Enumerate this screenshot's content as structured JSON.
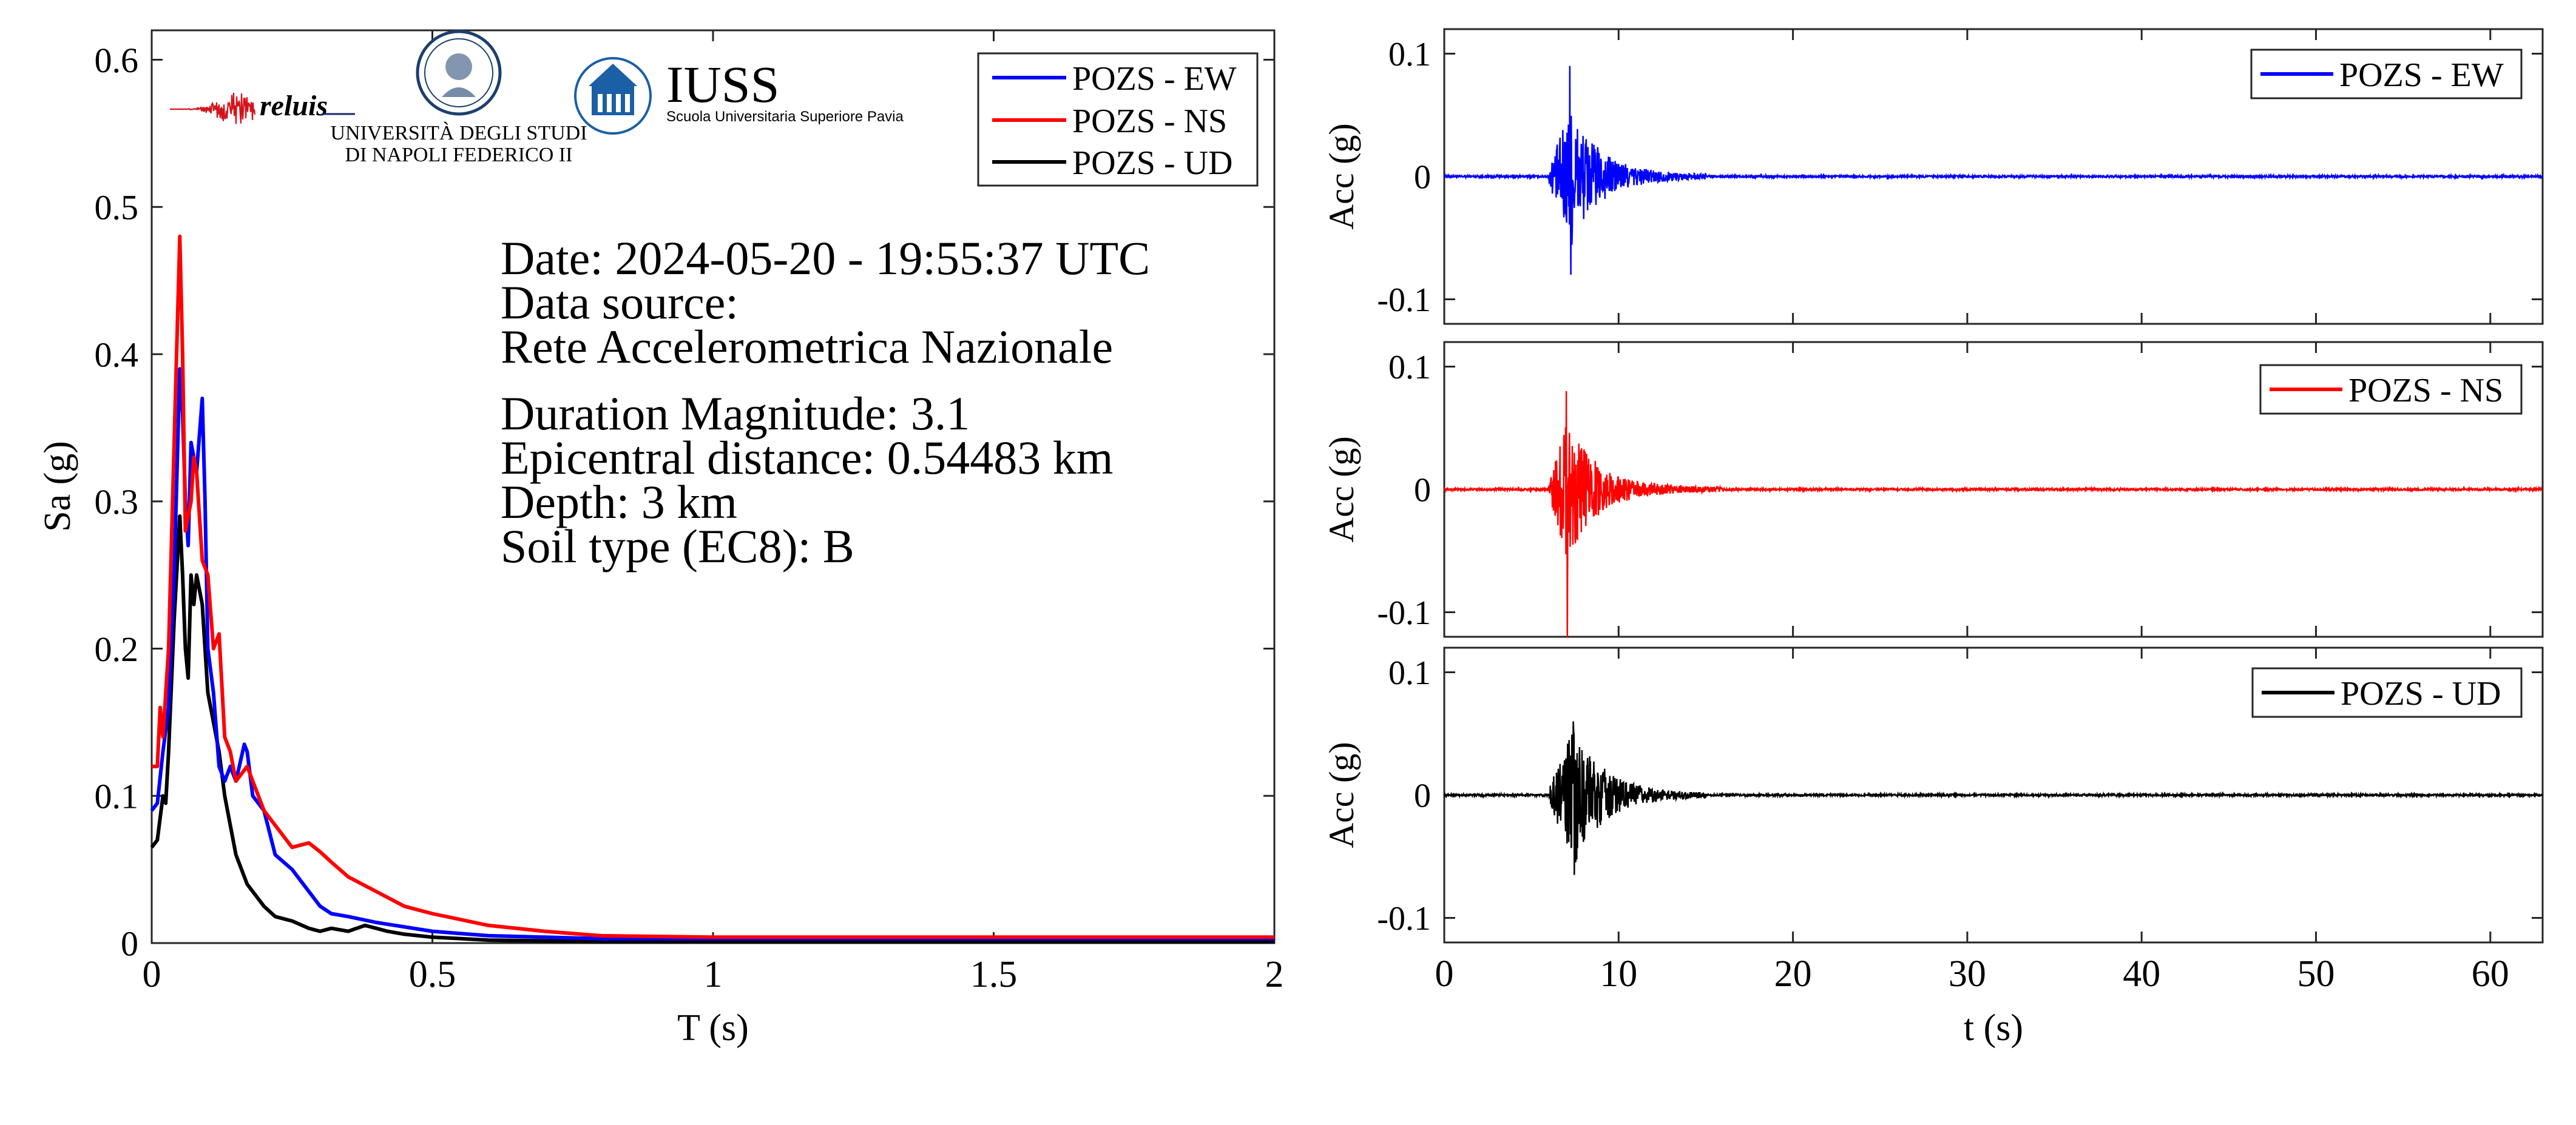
{
  "colors": {
    "ew": "#0000ff",
    "ns": "#ff0000",
    "ud": "#000000",
    "iuss": "#1b5fa6"
  },
  "logos": {
    "reluis": "reluis",
    "unina_line1": "UNIVERSITÀ DEGLI STUDI",
    "unina_line2": "DI NAPOLI FEDERICO II",
    "iuss_name": "IUSS",
    "iuss_sub": "Scuola Universitaria Superiore Pavia"
  },
  "info": {
    "date": "Date: 2024-05-20 - 19:55:37 UTC",
    "source_label": "Data source:",
    "source_value": "Rete Accelerometrica Nazionale",
    "magnitude": "Duration Magnitude: 3.1",
    "distance": "Epicentral distance: 0.54483 km",
    "depth": "Depth: 3 km",
    "soil": "Soil type (EC8): B"
  },
  "chart_data": [
    {
      "type": "line",
      "xlabel": "T (s)",
      "ylabel": "Sa (g)",
      "xlim": [
        0,
        2
      ],
      "ylim": [
        0,
        0.62
      ],
      "xticks": [
        0,
        0.5,
        1,
        1.5,
        2
      ],
      "xtick_labels": [
        "0",
        "0.5",
        "1",
        "1.5",
        "2"
      ],
      "yticks": [
        0,
        0.1,
        0.2,
        0.3,
        0.4,
        0.5,
        0.6
      ],
      "ytick_labels": [
        "0",
        "0.1",
        "0.2",
        "0.3",
        "0.4",
        "0.5",
        "0.6"
      ],
      "grid": false,
      "legend": "top-right",
      "series": [
        {
          "name": "POZS - EW",
          "color": "#0000ff",
          "x": [
            0,
            0.01,
            0.02,
            0.03,
            0.04,
            0.05,
            0.055,
            0.06,
            0.065,
            0.07,
            0.08,
            0.09,
            0.095,
            0.1,
            0.11,
            0.12,
            0.13,
            0.14,
            0.15,
            0.165,
            0.17,
            0.18,
            0.2,
            0.22,
            0.25,
            0.28,
            0.3,
            0.32,
            0.35,
            0.4,
            0.45,
            0.5,
            0.6,
            0.7,
            0.8,
            1.0,
            1.2,
            1.5,
            2.0
          ],
          "y": [
            0.09,
            0.095,
            0.13,
            0.16,
            0.25,
            0.39,
            0.36,
            0.3,
            0.27,
            0.34,
            0.32,
            0.37,
            0.3,
            0.2,
            0.17,
            0.12,
            0.11,
            0.12,
            0.11,
            0.135,
            0.13,
            0.1,
            0.09,
            0.06,
            0.05,
            0.035,
            0.025,
            0.02,
            0.018,
            0.014,
            0.011,
            0.008,
            0.005,
            0.004,
            0.003,
            0.003,
            0.003,
            0.003,
            0.003
          ]
        },
        {
          "name": "POZS - NS",
          "color": "#ff0000",
          "x": [
            0,
            0.01,
            0.015,
            0.02,
            0.03,
            0.04,
            0.05,
            0.055,
            0.06,
            0.07,
            0.075,
            0.08,
            0.09,
            0.1,
            0.11,
            0.12,
            0.13,
            0.14,
            0.15,
            0.17,
            0.2,
            0.22,
            0.25,
            0.28,
            0.3,
            0.32,
            0.35,
            0.4,
            0.45,
            0.5,
            0.6,
            0.7,
            0.8,
            1.0,
            1.2,
            1.5,
            2.0
          ],
          "y": [
            0.12,
            0.12,
            0.16,
            0.14,
            0.2,
            0.34,
            0.48,
            0.4,
            0.28,
            0.3,
            0.33,
            0.32,
            0.26,
            0.25,
            0.2,
            0.21,
            0.14,
            0.13,
            0.11,
            0.12,
            0.09,
            0.08,
            0.065,
            0.068,
            0.062,
            0.055,
            0.045,
            0.035,
            0.025,
            0.02,
            0.012,
            0.008,
            0.005,
            0.004,
            0.004,
            0.004,
            0.004
          ]
        },
        {
          "name": "POZS - UD",
          "color": "#000000",
          "x": [
            0,
            0.01,
            0.02,
            0.025,
            0.03,
            0.04,
            0.05,
            0.055,
            0.06,
            0.065,
            0.07,
            0.075,
            0.08,
            0.09,
            0.1,
            0.11,
            0.12,
            0.13,
            0.14,
            0.15,
            0.17,
            0.2,
            0.22,
            0.25,
            0.28,
            0.3,
            0.32,
            0.35,
            0.38,
            0.4,
            0.42,
            0.45,
            0.5,
            0.6,
            0.8,
            1.0,
            1.5,
            2.0
          ],
          "y": [
            0.065,
            0.07,
            0.1,
            0.095,
            0.13,
            0.22,
            0.29,
            0.25,
            0.2,
            0.18,
            0.25,
            0.23,
            0.25,
            0.23,
            0.17,
            0.15,
            0.13,
            0.1,
            0.08,
            0.06,
            0.04,
            0.025,
            0.018,
            0.015,
            0.01,
            0.008,
            0.01,
            0.008,
            0.012,
            0.01,
            0.008,
            0.006,
            0.004,
            0.002,
            0.001,
            0.001,
            0.001,
            0.001
          ]
        }
      ]
    },
    {
      "type": "line",
      "xlabel": "",
      "ylabel": "Acc (g)",
      "xlim": [
        0,
        63
      ],
      "ylim": [
        -0.12,
        0.12
      ],
      "yticks": [
        -0.1,
        0,
        0.1
      ],
      "ytick_labels": [
        "-0.1",
        "0",
        "0.1"
      ],
      "legend": "top-right",
      "series": [
        {
          "name": "POZS - EW",
          "color": "#0000ff",
          "envelope": {
            "onset": 6.0,
            "peak_time": 7.2,
            "peak_pos": 0.09,
            "peak_neg": -0.08,
            "decay_end": 15
          }
        }
      ]
    },
    {
      "type": "line",
      "xlabel": "",
      "ylabel": "Acc (g)",
      "xlim": [
        0,
        63
      ],
      "ylim": [
        -0.12,
        0.12
      ],
      "yticks": [
        -0.1,
        0,
        0.1
      ],
      "ytick_labels": [
        "-0.1",
        "0",
        "0.1"
      ],
      "legend": "top-right",
      "series": [
        {
          "name": "POZS - NS",
          "color": "#ff0000",
          "envelope": {
            "onset": 6.0,
            "peak_time": 7.0,
            "peak_pos": 0.08,
            "peak_neg": -0.12,
            "decay_end": 16
          }
        }
      ]
    },
    {
      "type": "line",
      "xlabel": "t (s)",
      "ylabel": "Acc (g)",
      "xlim": [
        0,
        63
      ],
      "ylim": [
        -0.12,
        0.12
      ],
      "xticks": [
        0,
        10,
        20,
        30,
        40,
        50,
        60
      ],
      "xtick_labels": [
        "0",
        "10",
        "20",
        "30",
        "40",
        "50",
        "60"
      ],
      "yticks": [
        -0.1,
        0,
        0.1
      ],
      "ytick_labels": [
        "-0.1",
        "0",
        "0.1"
      ],
      "legend": "top-right",
      "series": [
        {
          "name": "POZS - UD",
          "color": "#000000",
          "envelope": {
            "onset": 6.0,
            "peak_time": 7.4,
            "peak_pos": 0.06,
            "peak_neg": -0.065,
            "decay_end": 15
          }
        }
      ]
    }
  ]
}
